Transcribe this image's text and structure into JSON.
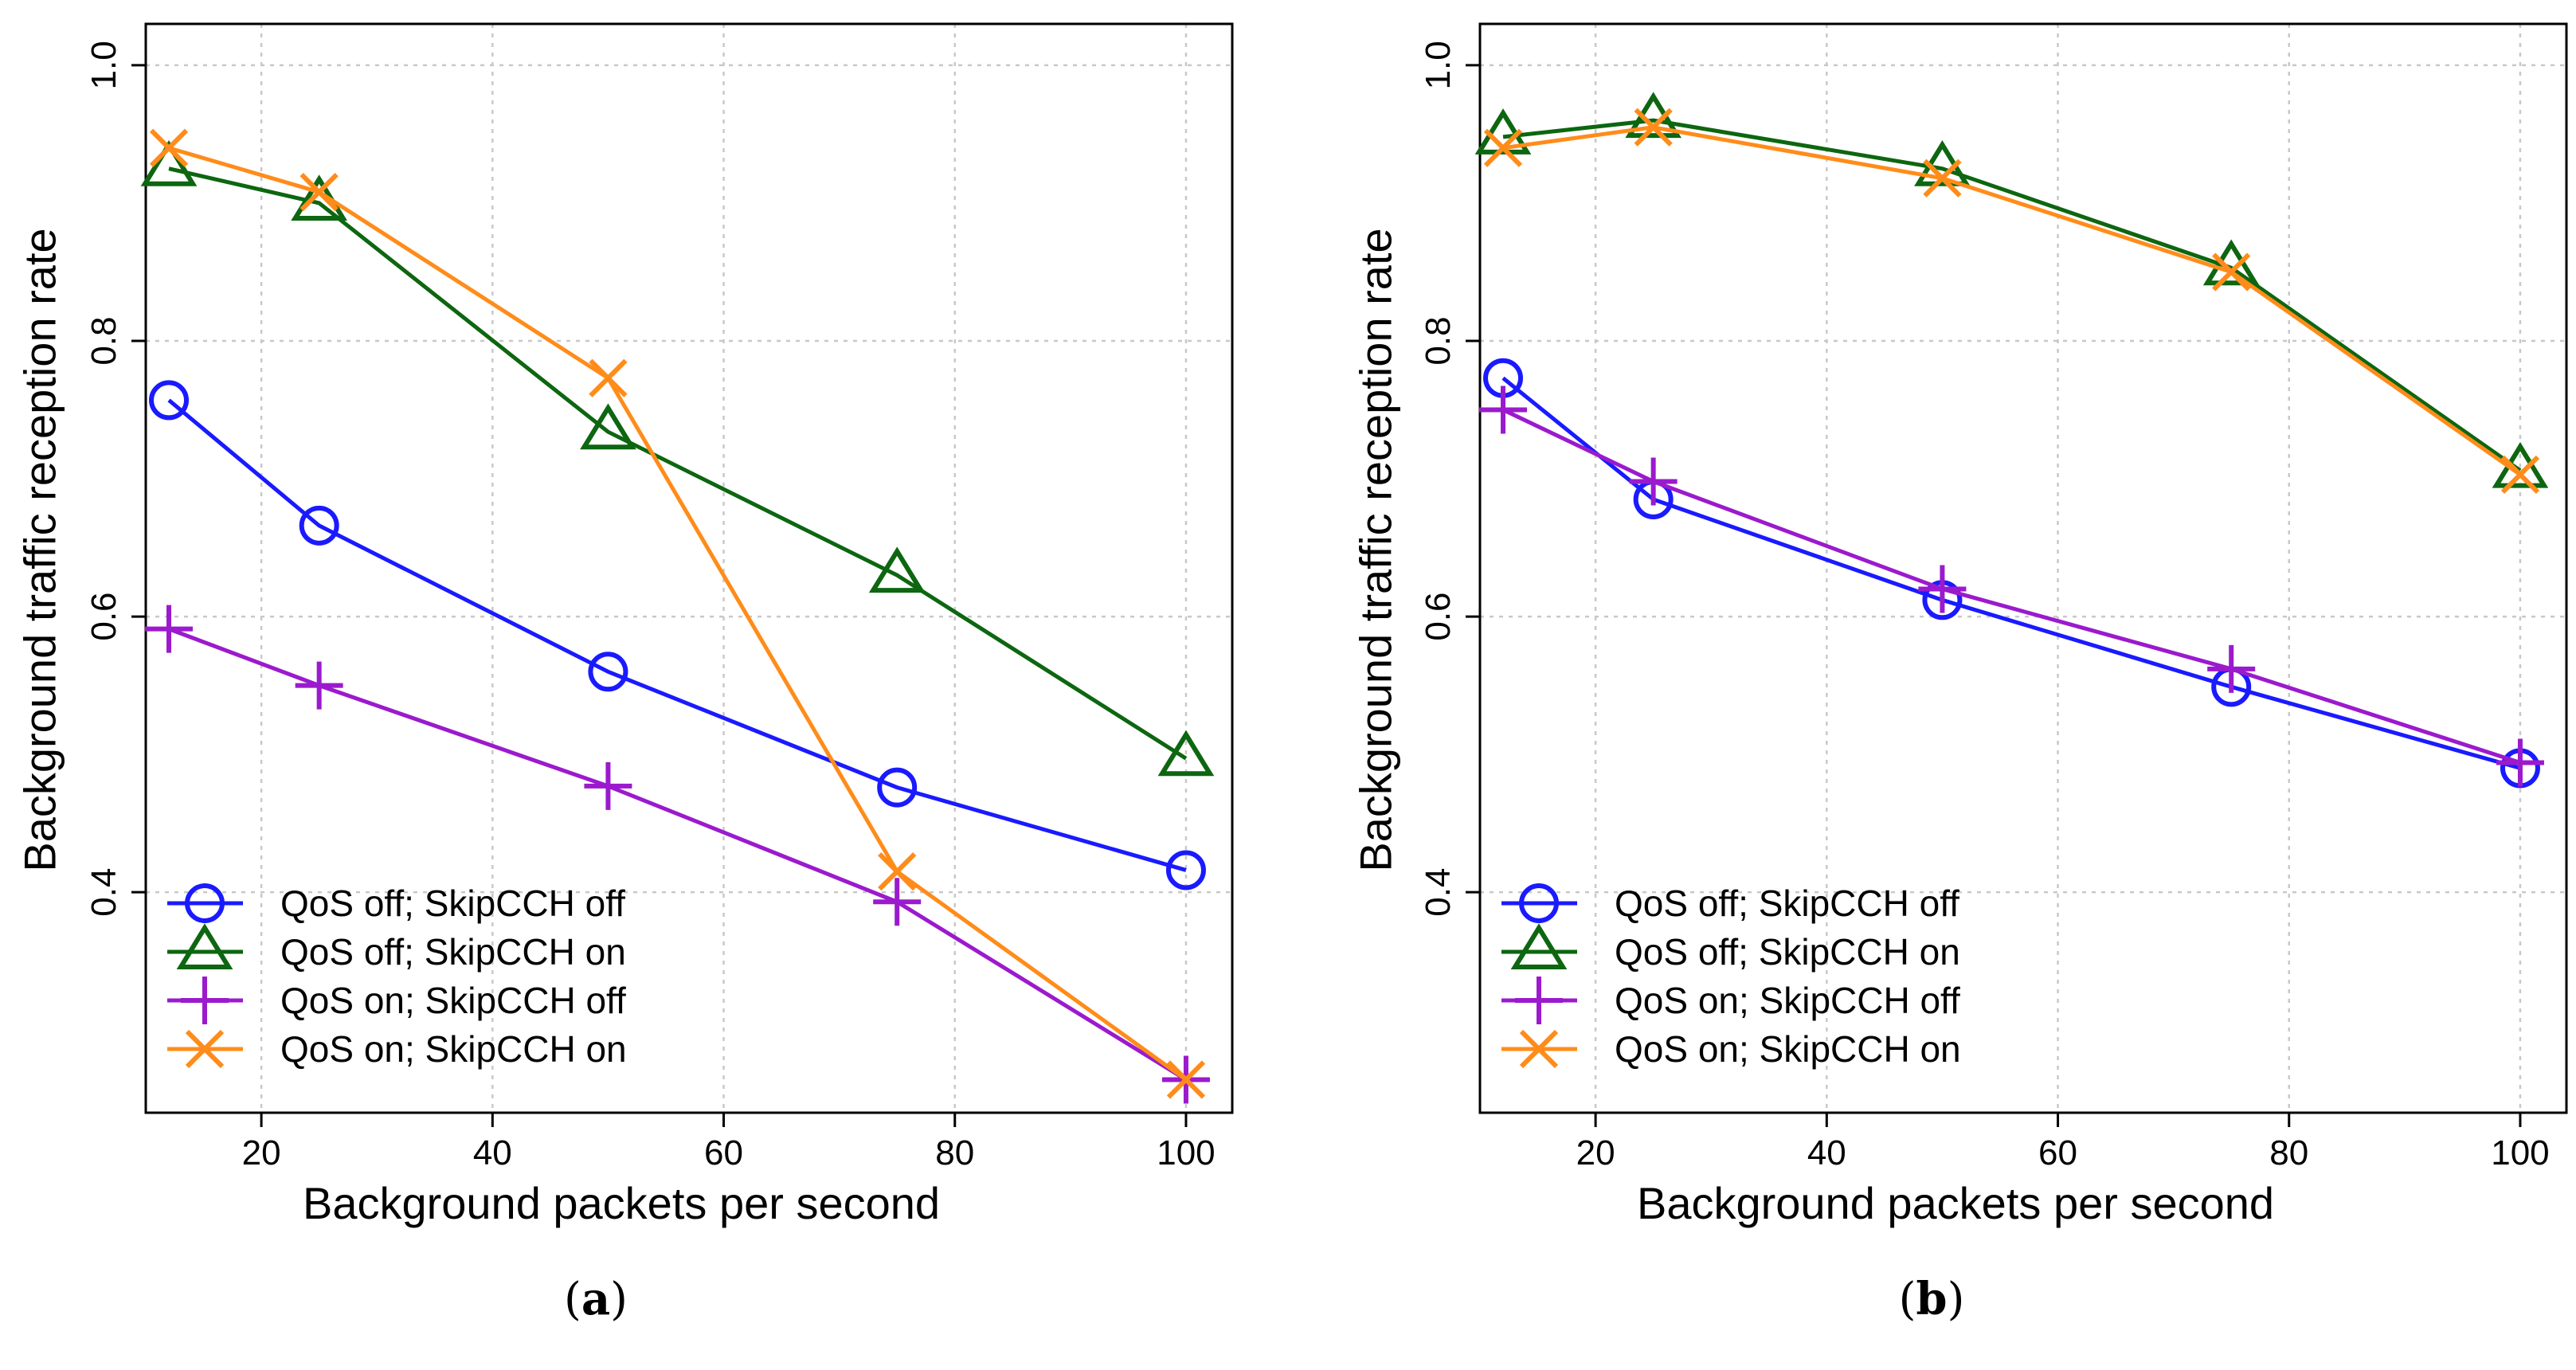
{
  "chart_data": [
    {
      "type": "line",
      "panel_label": "a",
      "xlabel": "Background packets per second",
      "ylabel": "Background traffic reception rate",
      "xlim": [
        10,
        104
      ],
      "ylim": [
        0.24,
        1.03
      ],
      "xticks": [
        20,
        40,
        60,
        80,
        100
      ],
      "xtick_labels": [
        "20",
        "40",
        "60",
        "80",
        "100"
      ],
      "yticks": [
        0.4,
        0.6,
        0.8,
        1.0
      ],
      "ytick_labels": [
        "0.4",
        "0.6",
        "0.8",
        "1.0"
      ],
      "grid": true,
      "legend_position": "bottom-left",
      "x": [
        12,
        25,
        50,
        75,
        100
      ],
      "series": [
        {
          "name": "QoS off; SkipCCH off",
          "marker": "circle",
          "color": "#1a1aff",
          "values": [
            0.757,
            0.666,
            0.56,
            0.476,
            0.416
          ]
        },
        {
          "name": "QoS off; SkipCCH on",
          "marker": "triangle",
          "color": "#0d6610",
          "values": [
            0.925,
            0.9,
            0.734,
            0.63,
            0.497
          ]
        },
        {
          "name": "QoS on; SkipCCH off",
          "marker": "plus",
          "color": "#9b1acd",
          "values": [
            0.591,
            0.55,
            0.477,
            0.393,
            0.264
          ]
        },
        {
          "name": "QoS on; SkipCCH on",
          "marker": "cross",
          "color": "#ff8c1a",
          "values": [
            0.94,
            0.908,
            0.773,
            0.415,
            0.264
          ]
        }
      ]
    },
    {
      "type": "line",
      "panel_label": "b",
      "xlabel": "Background packets per second",
      "ylabel": "Background traffic reception rate",
      "xlim": [
        10,
        104
      ],
      "ylim": [
        0.24,
        1.03
      ],
      "xticks": [
        20,
        40,
        60,
        80,
        100
      ],
      "xtick_labels": [
        "20",
        "40",
        "60",
        "80",
        "100"
      ],
      "yticks": [
        0.4,
        0.6,
        0.8,
        1.0
      ],
      "ytick_labels": [
        "0.4",
        "0.6",
        "0.8",
        "1.0"
      ],
      "grid": true,
      "legend_position": "bottom-left",
      "x": [
        12,
        25,
        50,
        75,
        100
      ],
      "series": [
        {
          "name": "QoS off; SkipCCH off",
          "marker": "circle",
          "color": "#1a1aff",
          "values": [
            0.773,
            0.685,
            0.612,
            0.549,
            0.49
          ]
        },
        {
          "name": "QoS off; SkipCCH on",
          "marker": "triangle",
          "color": "#0d6610",
          "values": [
            0.948,
            0.96,
            0.925,
            0.853,
            0.706
          ]
        },
        {
          "name": "QoS on; SkipCCH off",
          "marker": "plus",
          "color": "#9b1acd",
          "values": [
            0.75,
            0.698,
            0.62,
            0.562,
            0.494
          ]
        },
        {
          "name": "QoS on; SkipCCH on",
          "marker": "cross",
          "color": "#ff8c1a",
          "values": [
            0.94,
            0.955,
            0.918,
            0.85,
            0.703
          ]
        }
      ]
    }
  ],
  "captions": {
    "a": {
      "open": "(",
      "label": "a",
      "close": ")"
    },
    "b": {
      "open": "(",
      "label": "b",
      "close": ")"
    }
  }
}
